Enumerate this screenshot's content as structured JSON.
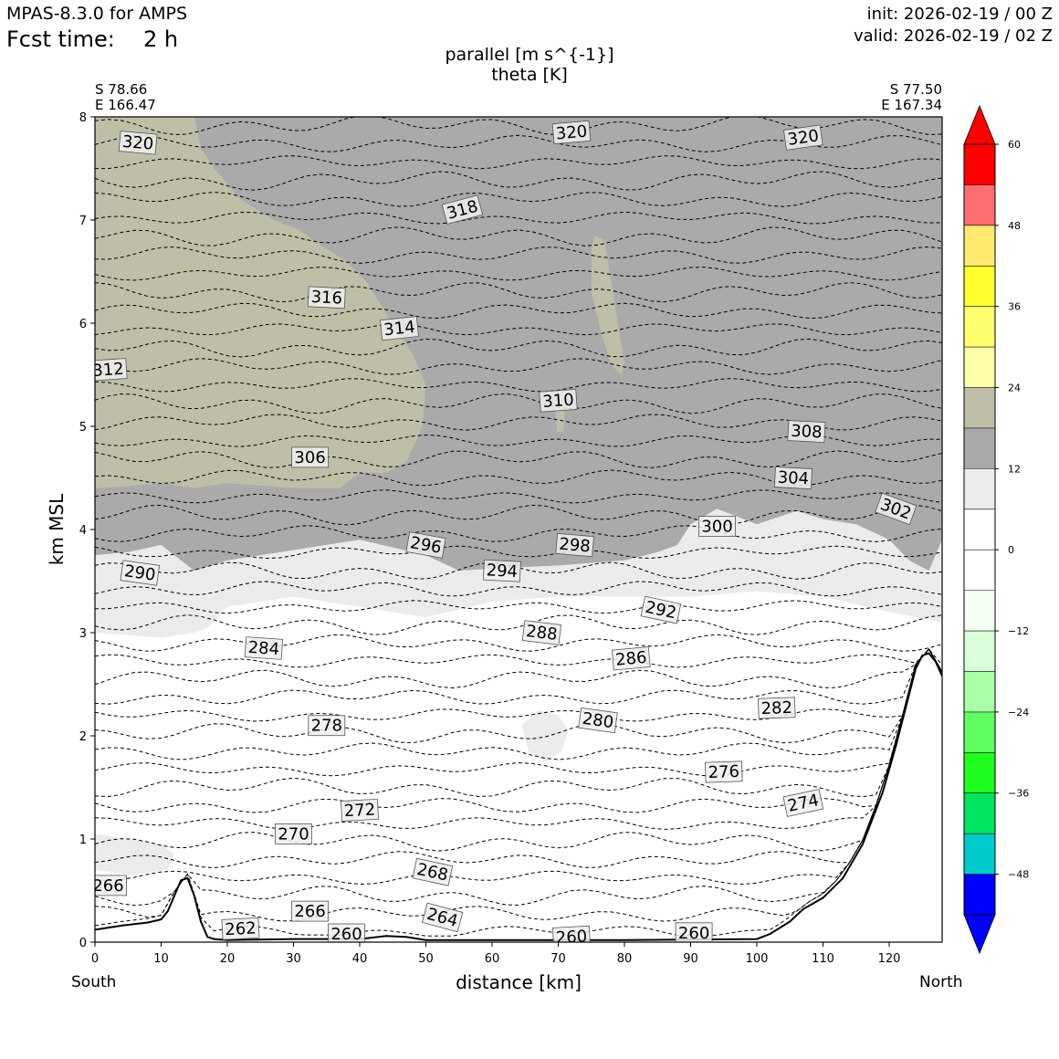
{
  "header": {
    "model": "MPAS-8.3.0 for AMPS",
    "fcst_label": "Fcst time:",
    "fcst_value": "2 h",
    "init": "init: 2026-02-19 / 00 Z",
    "valid": "valid: 2026-02-19 / 02 Z"
  },
  "chart_data": {
    "type": "contour-cross-section",
    "title_line1": "parallel [m s^{-1}]",
    "title_line2": "theta [K]",
    "xlabel": "distance [km]",
    "ylabel": "km MSL",
    "xlim": [
      0,
      128
    ],
    "ylim": [
      0,
      8
    ],
    "x_ticks": [
      0,
      10,
      20,
      30,
      40,
      50,
      60,
      70,
      80,
      90,
      100,
      110,
      120
    ],
    "y_ticks": [
      0,
      1,
      2,
      3,
      4,
      5,
      6,
      7,
      8
    ],
    "endpoints": {
      "left": {
        "lat": "S 78.66",
        "lon": "E 166.47",
        "dir": "South"
      },
      "right": {
        "lat": "S 77.50",
        "lon": "E 167.34",
        "dir": "North"
      }
    },
    "colorbar": {
      "ticks": [
        "60",
        "48",
        "36",
        "24",
        "12",
        "0",
        "−12",
        "−24",
        "−36",
        "−48"
      ],
      "levels": [
        60,
        54,
        48,
        42,
        36,
        30,
        24,
        18,
        12,
        6,
        0,
        -6,
        -12,
        -18,
        -24,
        -30,
        -36,
        -42,
        -48,
        -54
      ],
      "colors": [
        "#ff0000",
        "#ff6e6e",
        "#ffe96e",
        "#ffff2d",
        "#ffff6e",
        "#ffffa8",
        "#bfbfa8",
        "#aaaaaa",
        "#ebebeb",
        "#ffffff",
        "#ffffff",
        "#f3fff3",
        "#d9ffd9",
        "#a8ffa8",
        "#5fff5f",
        "#1eff1e",
        "#00e55f",
        "#00cbcb",
        "#0000ff"
      ],
      "over_color": "#ff0000",
      "under_color": "#0000ff"
    },
    "theta_labels": [
      {
        "text": "320",
        "x": 6.5,
        "y": 7.75,
        "rot": 5
      },
      {
        "text": "320",
        "x": 72,
        "y": 7.85,
        "rot": -5
      },
      {
        "text": "320",
        "x": 107,
        "y": 7.8,
        "rot": -8
      },
      {
        "text": "318",
        "x": 55.5,
        "y": 7.1,
        "rot": -15
      },
      {
        "text": "316",
        "x": 35,
        "y": 6.25,
        "rot": 3
      },
      {
        "text": "314",
        "x": 46,
        "y": 5.95,
        "rot": -6
      },
      {
        "text": "312",
        "x": 2,
        "y": 5.55,
        "rot": -4
      },
      {
        "text": "310",
        "x": 70,
        "y": 5.25,
        "rot": -4
      },
      {
        "text": "308",
        "x": 107.5,
        "y": 4.95,
        "rot": 3
      },
      {
        "text": "306",
        "x": 32.5,
        "y": 4.7,
        "rot": 0
      },
      {
        "text": "304",
        "x": 105.5,
        "y": 4.5,
        "rot": 3
      },
      {
        "text": "302",
        "x": 121,
        "y": 4.2,
        "rot": 20
      },
      {
        "text": "300",
        "x": 94,
        "y": 4.03,
        "rot": 0
      },
      {
        "text": "298",
        "x": 72.5,
        "y": 3.85,
        "rot": 5
      },
      {
        "text": "296",
        "x": 50,
        "y": 3.85,
        "rot": 10
      },
      {
        "text": "294",
        "x": 61.5,
        "y": 3.6,
        "rot": 3
      },
      {
        "text": "290",
        "x": 6.8,
        "y": 3.58,
        "rot": 8
      },
      {
        "text": "292",
        "x": 85.5,
        "y": 3.22,
        "rot": 12
      },
      {
        "text": "288",
        "x": 67.5,
        "y": 3.0,
        "rot": 7
      },
      {
        "text": "286",
        "x": 81,
        "y": 2.75,
        "rot": -5
      },
      {
        "text": "284",
        "x": 25.5,
        "y": 2.85,
        "rot": 4
      },
      {
        "text": "282",
        "x": 103,
        "y": 2.27,
        "rot": -2
      },
      {
        "text": "280",
        "x": 76,
        "y": 2.15,
        "rot": 8
      },
      {
        "text": "278",
        "x": 35,
        "y": 2.1,
        "rot": 0
      },
      {
        "text": "276",
        "x": 95,
        "y": 1.65,
        "rot": -2
      },
      {
        "text": "274",
        "x": 107,
        "y": 1.35,
        "rot": -12
      },
      {
        "text": "272",
        "x": 40,
        "y": 1.28,
        "rot": -3
      },
      {
        "text": "270",
        "x": 30,
        "y": 1.05,
        "rot": 0
      },
      {
        "text": "268",
        "x": 51,
        "y": 0.68,
        "rot": 12
      },
      {
        "text": "266",
        "x": 2,
        "y": 0.55,
        "rot": 0
      },
      {
        "text": "266",
        "x": 32.5,
        "y": 0.3,
        "rot": 0
      },
      {
        "text": "264",
        "x": 52.5,
        "y": 0.24,
        "rot": 15
      },
      {
        "text": "262",
        "x": 22,
        "y": 0.13,
        "rot": -3
      },
      {
        "text": "260",
        "x": 38,
        "y": 0.08,
        "rot": 0
      },
      {
        "text": "260",
        "x": 72,
        "y": 0.05,
        "rot": -3
      },
      {
        "text": "260",
        "x": 90.5,
        "y": 0.09,
        "rot": 0
      }
    ]
  }
}
